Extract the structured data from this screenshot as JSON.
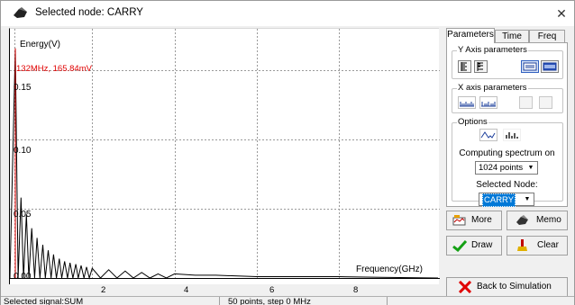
{
  "window": {
    "title": "Selected node: CARRY",
    "close_glyph": "✕"
  },
  "plot": {
    "y_axis_label": "Energy(V)",
    "x_axis_label": "Frequency(GHz)",
    "readout": "132MHz, 165.84mV",
    "y_tick_labels": [
      "0.15",
      "0.10",
      "0.05",
      "0.00"
    ],
    "x_tick_labels": [
      "2",
      "4",
      "6",
      "8"
    ],
    "colors": {
      "trace": "#000000",
      "grid": "#9a9a9a",
      "readout": "#e00000"
    }
  },
  "chart_data": {
    "type": "line",
    "xlabel": "Frequency(GHz)",
    "ylabel": "Energy(V)",
    "xlim": [
      0,
      10.4
    ],
    "ylim": [
      0,
      0.18
    ],
    "grid": true,
    "peak": {
      "x": 0.132,
      "y": 0.16584
    },
    "series": [
      {
        "x": [
          0.0,
          0.132,
          0.2,
          0.27,
          0.33,
          0.4,
          0.46,
          0.53,
          0.6,
          0.66,
          0.73,
          0.8,
          0.86,
          0.93,
          1.0,
          1.06,
          1.13,
          1.2,
          1.26,
          1.33,
          1.4,
          1.46,
          1.53,
          1.6,
          1.66,
          1.73,
          1.8,
          1.86,
          1.93,
          2.0,
          2.2,
          2.4,
          2.6,
          2.8,
          3.0,
          3.2,
          3.4,
          3.6,
          3.8,
          4.0,
          4.5,
          5.0,
          6.0,
          7.0,
          8.0,
          9.0,
          10.4
        ],
        "y": [
          0.0,
          0.1658,
          0.0,
          0.058,
          0.0,
          0.046,
          0.0,
          0.036,
          0.0,
          0.029,
          0.0,
          0.024,
          0.0,
          0.02,
          0.0,
          0.017,
          0.0,
          0.014,
          0.0,
          0.012,
          0.0,
          0.011,
          0.0,
          0.01,
          0.0,
          0.009,
          0.0,
          0.008,
          0.0,
          0.007,
          0.0,
          0.006,
          0.0,
          0.005,
          0.0,
          0.004,
          0.0,
          0.003,
          0.0,
          0.003,
          0.002,
          0.002,
          0.001,
          0.001,
          0.001,
          0.0005,
          0.0
        ]
      }
    ]
  },
  "panel": {
    "tabs": [
      "Parameters",
      "Time",
      "Freq"
    ],
    "active_tab": "Parameters",
    "y_axis_group": "Y Axis parameters",
    "x_axis_group": "X axis parameters",
    "options_group": "Options",
    "computing_label": "Computing spectrum on",
    "points_value": "1024 points",
    "selected_node_label": "Selected Node:",
    "selected_node_value": "CARRY"
  },
  "buttons": {
    "more": "More",
    "memo": "Memo",
    "draw": "Draw",
    "clear": "Clear",
    "back": "Back to Simulation"
  },
  "status": {
    "signal": "Selected signal:SUM",
    "points": "50 points, step 0 MHz"
  }
}
